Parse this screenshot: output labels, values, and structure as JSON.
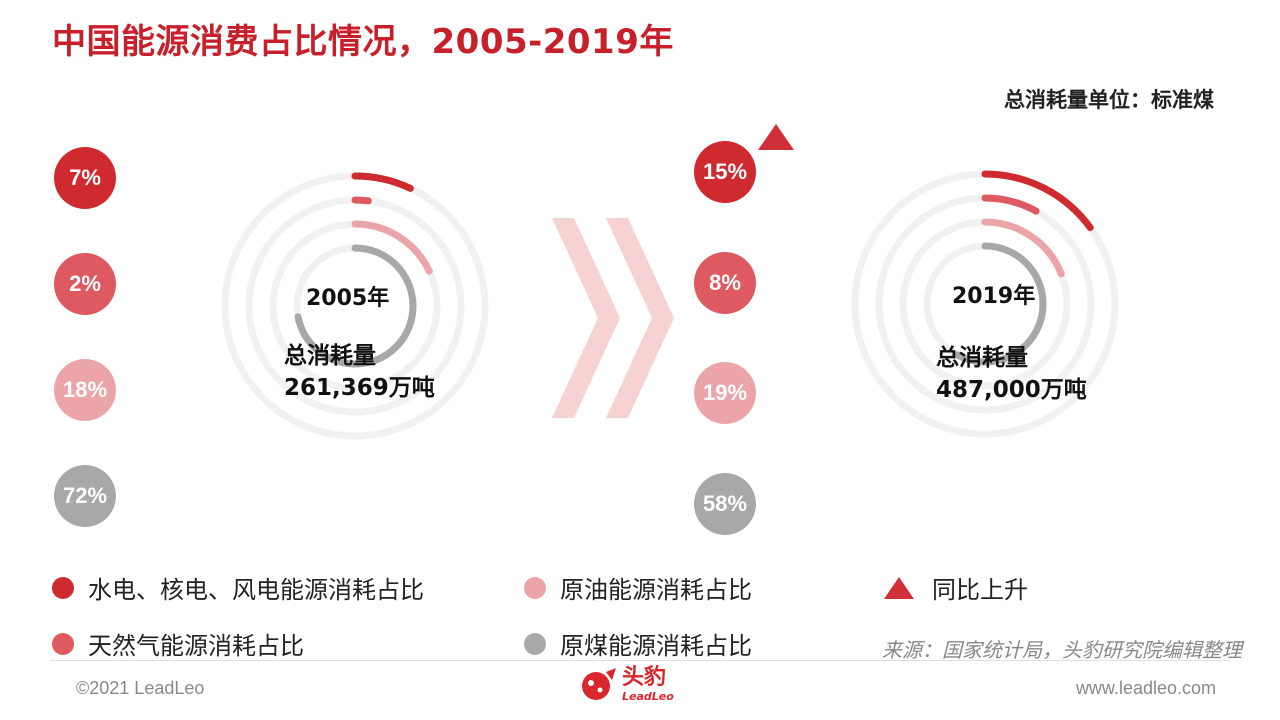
{
  "title": "中国能源消费占比情况，2005-2019年",
  "unit_note": "总消耗量单位：标准煤",
  "colors": {
    "hydro": "#cf2a30",
    "gas": "#de5a60",
    "oil": "#eba5a8",
    "coal": "#a8a8a8",
    "track": "#f1f1f1",
    "accent": "#c8202a"
  },
  "chart_data": [
    {
      "type": "radial_bar",
      "year_label": "2005年",
      "total_label": "总消耗量",
      "total_value": "261,369万吨",
      "series": [
        {
          "name": "水电、核电、风电能源消耗占比",
          "value": 7,
          "label": "7%"
        },
        {
          "name": "天然气能源消耗占比",
          "value": 2,
          "label": "2%"
        },
        {
          "name": "原油能源消耗占比",
          "value": 18,
          "label": "18%"
        },
        {
          "name": "原煤能源消耗占比",
          "value": 72,
          "label": "72%"
        }
      ]
    },
    {
      "type": "radial_bar",
      "year_label": "2019年",
      "total_label": "总消耗量",
      "total_value": "487,000万吨",
      "series": [
        {
          "name": "水电、核电、风电能源消耗占比",
          "value": 15,
          "label": "15%",
          "trend": "up"
        },
        {
          "name": "天然气能源消耗占比",
          "value": 8,
          "label": "8%"
        },
        {
          "name": "原油能源消耗占比",
          "value": 19,
          "label": "19%"
        },
        {
          "name": "原煤能源消耗占比",
          "value": 58,
          "label": "58%"
        }
      ]
    }
  ],
  "legend": {
    "hydro": "水电、核电、风电能源消耗占比",
    "gas": "天然气能源消耗占比",
    "oil": "原油能源消耗占比",
    "coal": "原煤能源消耗占比",
    "up": "同比上升"
  },
  "source": "来源：国家统计局，头豹研究院编辑整理",
  "footer": {
    "copyright": "©2021 LeadLeo",
    "website": "www.leadleo.com",
    "logo_cn": "头豹",
    "logo_en": "LeadLeo"
  }
}
